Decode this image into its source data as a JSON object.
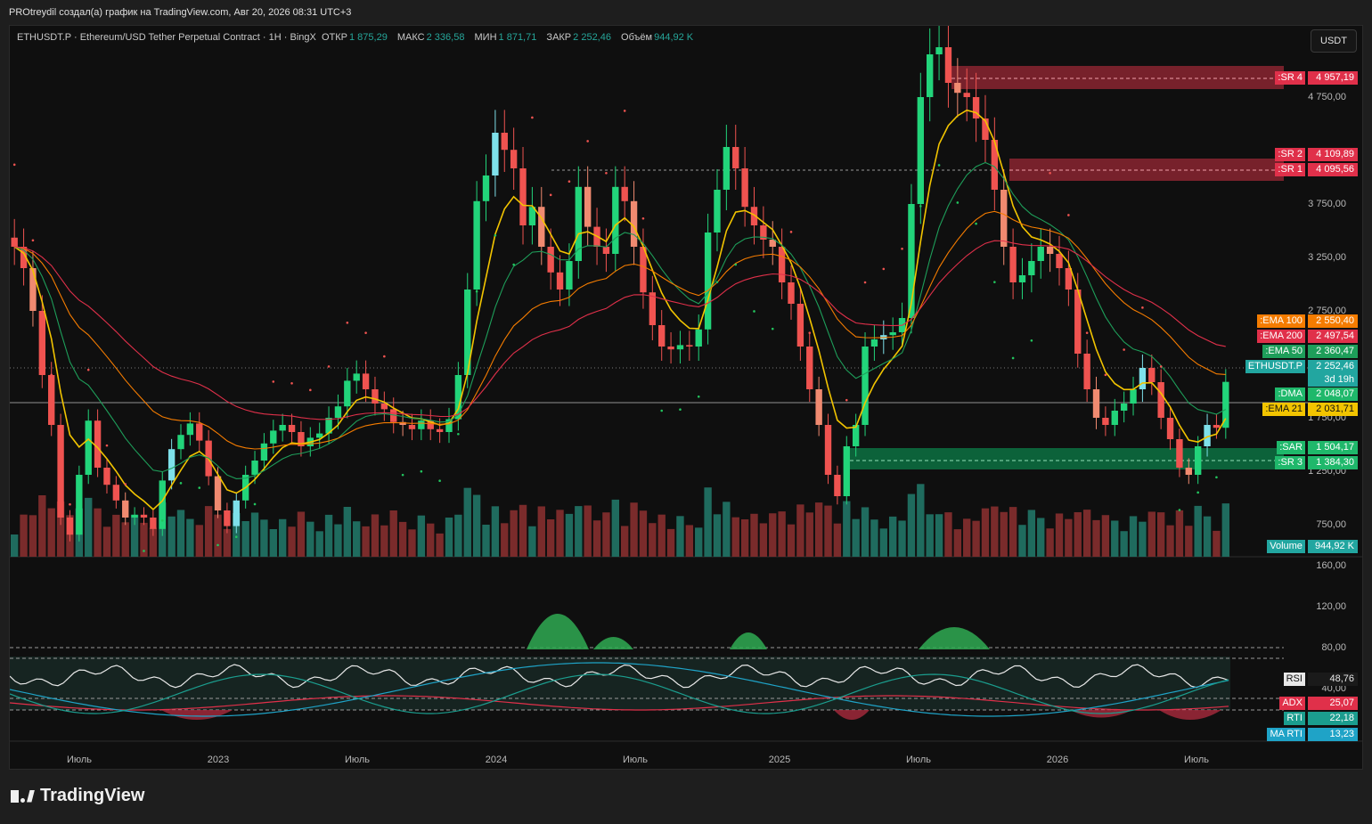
{
  "header": {
    "title": "PROtreydil создал(а) график на TradingView.com, Авг 20, 2026 08:31 UTC+3"
  },
  "legend": {
    "symbol": "ETHUSDT.P · Ethereum/USD Tether Perpetual Contract · 1H · BingX",
    "open_label": "ОТКР",
    "open": "1 875,29",
    "high_label": "МАКС",
    "high": "2 336,58",
    "low_label": "МИН",
    "low": "1 871,71",
    "close_label": "ЗАКР",
    "close": "2 252,46",
    "vol_label": "Объём",
    "vol": "944,92 K"
  },
  "currency_button": "USDT",
  "price_axis": [
    "4 750,00",
    "3 750,00",
    "3 250,00",
    "2 750,00",
    "1 750,00",
    "1 250,00",
    "750,00"
  ],
  "osc_axis": [
    "160,00",
    "120,00",
    "80,00",
    "40,00"
  ],
  "time_axis": [
    "Июль",
    "2023",
    "Июль",
    "2024",
    "Июль",
    "2025",
    "Июль",
    "2026",
    "Июль"
  ],
  "price_tags": [
    {
      "name": ":SR 4",
      "value": "4 957,19",
      "color": "#e0304a"
    },
    {
      "name": ":SR 2",
      "value": "4 109,89",
      "color": "#e0304a"
    },
    {
      "name": ":SR 1",
      "value": "4 095,56",
      "color": "#e0304a"
    },
    {
      "name": ":EMA 100",
      "value": "2 550,40",
      "color": "#f57c00"
    },
    {
      "name": ":EMA 200",
      "value": "2 497,54",
      "color": "#e0304a"
    },
    {
      "name": ":EMA 50",
      "value": "2 360,47",
      "color": "#1e9e5a"
    },
    {
      "name": "ETHUSDT.P",
      "value": "2 252,46",
      "color": "#22a6a0",
      "sub": "3d 19h"
    },
    {
      "name": ":DMA",
      "value": "2 048,07",
      "color": "#1fb86b"
    },
    {
      "name": ":EMA 21",
      "value": "2 031,71",
      "color": "#f2c400",
      "dark": true
    },
    {
      "name": ":SAR",
      "value": "1 504,17",
      "color": "#1fb86b"
    },
    {
      "name": ":SR 3",
      "value": "1 384,30",
      "color": "#1fb86b"
    },
    {
      "name": "Volume",
      "value": "944,92 K",
      "color": "#22a6a0"
    }
  ],
  "osc_tags": [
    {
      "name": "RSI",
      "value": "48,76",
      "color": "#e8e8e8",
      "dark": true
    },
    {
      "name": "ADX",
      "value": "25,07",
      "color": "#e0304a"
    },
    {
      "name": "RTI",
      "value": "22,18",
      "color": "#1b9d8e"
    },
    {
      "name": "MA RTI",
      "value": "13,23",
      "color": "#1fa3c7"
    }
  ],
  "colors": {
    "up": "#26a69a",
    "down": "#ef5350",
    "green_bright": "#22d47a",
    "cyan": "#7ee0ea"
  },
  "logo_text": "TradingView",
  "chart_data": {
    "type": "candlestick",
    "interval": "1H",
    "symbol": "ETHUSDT.P",
    "ohlc_last": {
      "open": 1875.29,
      "high": 2336.58,
      "low": 1871.71,
      "close": 2252.46,
      "volume": "944,92 K"
    },
    "levels": {
      "SR4": 4957.19,
      "SR2": 4109.89,
      "SR1": 4095.56,
      "SR3": 1384.3,
      "SAR": 1504.17,
      "DMA": 2048.07
    },
    "ema": {
      "EMA21": 2031.71,
      "EMA50": 2360.47,
      "EMA100": 2550.4,
      "EMA200": 2497.54
    },
    "closes": [
      3200,
      3050,
      2750,
      2300,
      1950,
      1300,
      1180,
      1600,
      1980,
      1650,
      1530,
      1420,
      1300,
      1320,
      1300,
      1220,
      1560,
      1780,
      1880,
      1960,
      1840,
      1590,
      1350,
      1240,
      1420,
      1600,
      1700,
      1820,
      1910,
      1950,
      1900,
      1800,
      1860,
      1890,
      2000,
      2080,
      2260,
      2310,
      2200,
      2100,
      2060,
      1970,
      1950,
      1920,
      1980,
      1920,
      1900,
      1990,
      2300,
      2900,
      3520,
      3700,
      4000,
      3880,
      3750,
      3350,
      3480,
      3200,
      3020,
      2900,
      3100,
      3620,
      3340,
      3200,
      3150,
      3620,
      3520,
      3200,
      2880,
      2650,
      2500,
      2480,
      2510,
      2500,
      2620,
      3300,
      3600,
      3900,
      3750,
      3480,
      3350,
      3250,
      3200,
      2950,
      2800,
      2500,
      2200,
      1950,
      1600,
      1450,
      1800,
      1950,
      2500,
      2550,
      2580,
      2600,
      2700,
      3500,
      4250,
      4550,
      4600,
      4350,
      4280,
      4250,
      4100,
      3950,
      3600,
      3200,
      2950,
      3000,
      3100,
      3200,
      3150,
      3050,
      2900,
      2450,
      2200,
      2000,
      1950,
      2050,
      2100,
      2200,
      2350,
      2250,
      2000,
      1850,
      1650,
      1600,
      1800,
      1950,
      1930,
      2252
    ],
    "rsi": 48.76,
    "adx": 25.07,
    "rti": 22.18,
    "ma_rti": 13.23
  }
}
